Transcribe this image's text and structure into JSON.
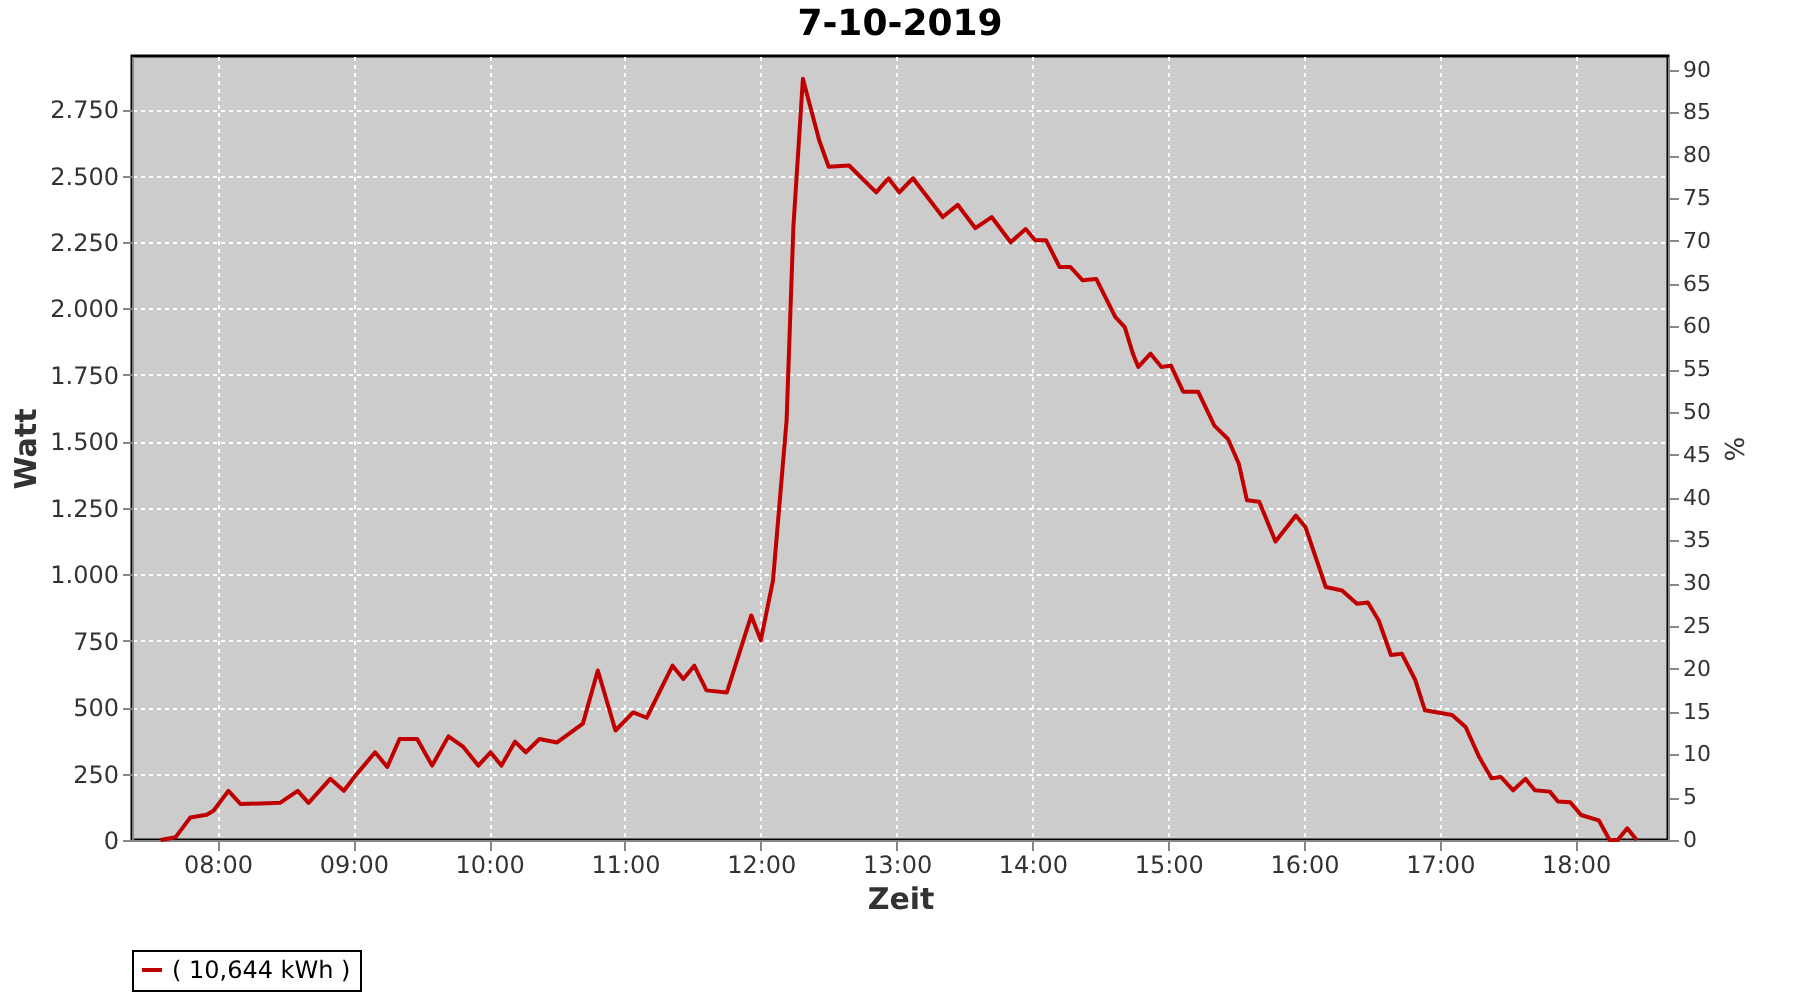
{
  "chart_data": {
    "type": "line",
    "title": "7-10-2019",
    "xlabel": "Zeit",
    "ylabel": "Watt",
    "y2label": "%",
    "xlim": [
      7.37,
      18.68
    ],
    "xticks": [
      {
        "value": 8,
        "label": "08:00"
      },
      {
        "value": 9,
        "label": "09:00"
      },
      {
        "value": 10,
        "label": "10:00"
      },
      {
        "value": 11,
        "label": "11:00"
      },
      {
        "value": 12,
        "label": "12:00"
      },
      {
        "value": 13,
        "label": "13:00"
      },
      {
        "value": 14,
        "label": "14:00"
      },
      {
        "value": 15,
        "label": "15:00"
      },
      {
        "value": 16,
        "label": "16:00"
      },
      {
        "value": 17,
        "label": "17:00"
      },
      {
        "value": 18,
        "label": "18:00"
      }
    ],
    "ylim": [
      0,
      2950
    ],
    "yticks": [
      0,
      250,
      500,
      750,
      {
        "value": 1000,
        "label": "1.000"
      },
      {
        "value": 1250,
        "label": "1.250"
      },
      {
        "value": 1500,
        "label": "1.500"
      },
      {
        "value": 1750,
        "label": "1.750"
      },
      {
        "value": 2000,
        "label": "2.000"
      },
      {
        "value": 2250,
        "label": "2.250"
      },
      {
        "value": 2500,
        "label": "2.500"
      },
      {
        "value": 2750,
        "label": "2.750"
      }
    ],
    "y2lim": [
      0,
      91.6
    ],
    "y2ticks": [
      0,
      5,
      10,
      15,
      20,
      25,
      30,
      35,
      40,
      45,
      50,
      55,
      60,
      65,
      70,
      75,
      80,
      85,
      90
    ],
    "grid": true,
    "legend": "bottom",
    "marker": "none",
    "line_style": "solid",
    "x": [
      7.58,
      7.69,
      7.8,
      7.92,
      7.97,
      8.08,
      8.17,
      8.46,
      8.59,
      8.67,
      8.83,
      8.93,
      9.02,
      9.16,
      9.25,
      9.34,
      9.47,
      9.58,
      9.7,
      9.81,
      9.92,
      10.01,
      10.09,
      10.19,
      10.27,
      10.37,
      10.5,
      10.69,
      10.8,
      10.93,
      11.06,
      11.16,
      11.35,
      11.43,
      11.51,
      11.6,
      11.75,
      11.93,
      12.0,
      12.09,
      12.19,
      12.24,
      12.31,
      12.43,
      12.5,
      12.65,
      12.85,
      12.94,
      13.02,
      13.12,
      13.34,
      13.45,
      13.58,
      13.7,
      13.84,
      13.95,
      14.02,
      14.1,
      14.2,
      14.28,
      14.37,
      14.47,
      14.61,
      14.68,
      14.74,
      14.78,
      14.87,
      14.95,
      15.02,
      15.11,
      15.22,
      15.34,
      15.44,
      15.52,
      15.58,
      15.67,
      15.79,
      15.94,
      16.01,
      16.16,
      16.28,
      16.39,
      16.47,
      16.55,
      16.64,
      16.72,
      16.82,
      16.89,
      17.09,
      17.19,
      17.29,
      17.38,
      17.45,
      17.54,
      17.63,
      17.7,
      17.81,
      17.87,
      17.96,
      18.04,
      18.17,
      18.25,
      18.31,
      18.38,
      18.45
    ],
    "series": [
      {
        "name": "( 10,644 kWh )",
        "color": "#c00000",
        "values": [
          0,
          10,
          85,
          95,
          110,
          185,
          135,
          140,
          185,
          140,
          230,
          185,
          245,
          330,
          275,
          380,
          380,
          280,
          390,
          350,
          280,
          330,
          280,
          370,
          330,
          380,
          367,
          438,
          638,
          412,
          480,
          460,
          656,
          606,
          656,
          563,
          555,
          845,
          751,
          977,
          1579,
          2307,
          2864,
          2633,
          2533,
          2538,
          2437,
          2490,
          2437,
          2490,
          2344,
          2390,
          2302,
          2344,
          2249,
          2299,
          2257,
          2257,
          2156,
          2156,
          2106,
          2111,
          1968,
          1930,
          1830,
          1780,
          1830,
          1780,
          1785,
          1687,
          1687,
          1559,
          1509,
          1416,
          1278,
          1273,
          1123,
          1221,
          1178,
          952,
          939,
          889,
          894,
          826,
          696,
          701,
          601,
          488,
          470,
          425,
          312,
          232,
          237,
          187,
          230,
          187,
          182,
          145,
          142,
          94,
          74,
          0,
          0,
          44,
          0
        ]
      }
    ]
  }
}
